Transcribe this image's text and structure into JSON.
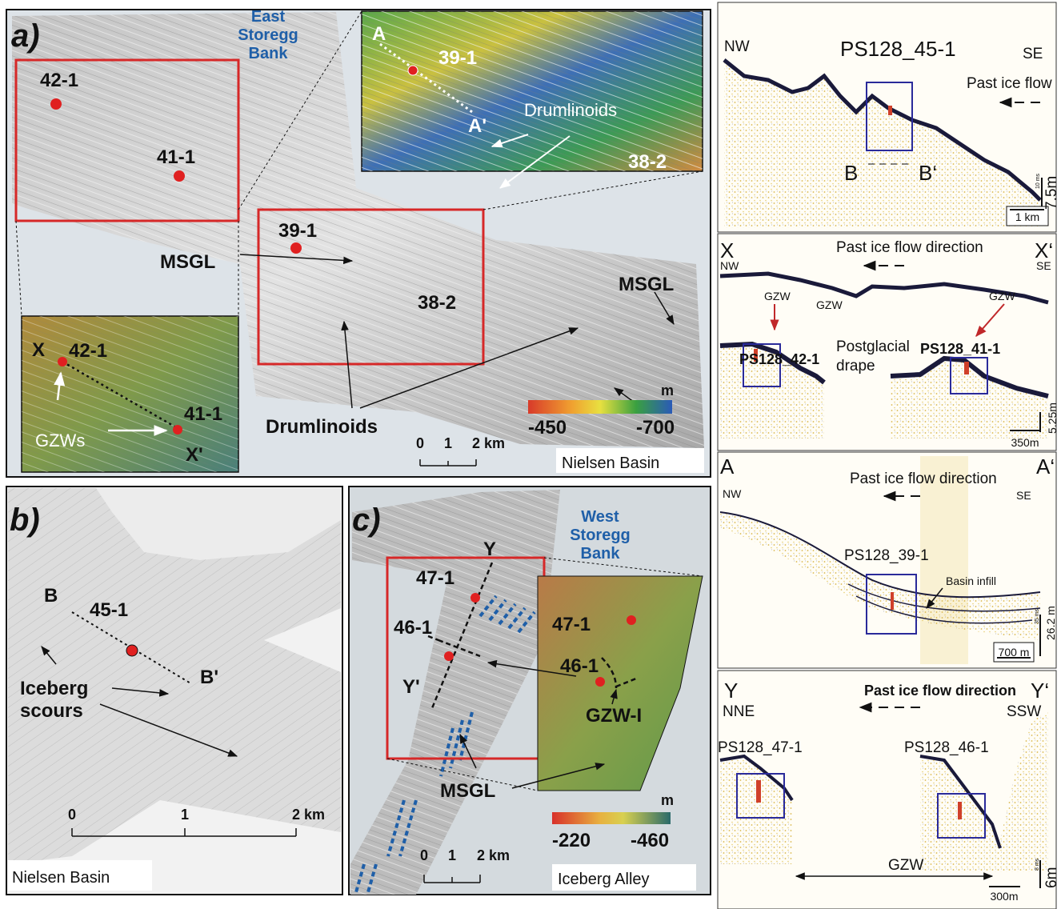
{
  "panel_a": {
    "label": "a)",
    "region": [
      "East",
      "Storegg",
      "Bank"
    ],
    "sites": [
      "42-1",
      "41-1",
      "39-1",
      "38-2"
    ],
    "msgl_labels": [
      "MSGL",
      "MSGL"
    ],
    "drumlinoids": "Drumlinoids",
    "inset_a": {
      "start": "A",
      "end": "A'",
      "site_1": "39-1",
      "site_2": "38-2",
      "feature": "Drumlinoids"
    },
    "inset_x": {
      "start": "X",
      "end": "X'",
      "site_1": "42-1",
      "site_2": "41-1",
      "feature": "GZWs"
    },
    "colorbar": {
      "unit": "m",
      "min": "-450",
      "max": "-700"
    },
    "scale": [
      "0",
      "1",
      "2 km"
    ],
    "location": "Nielsen Basin"
  },
  "panel_b": {
    "label": "b)",
    "start": "B",
    "end": "B'",
    "site": "45-1",
    "feature": [
      "Iceberg",
      "scours"
    ],
    "scale": [
      "0",
      "1",
      "2 km"
    ],
    "location": "Nielsen Basin"
  },
  "panel_c": {
    "label": "c)",
    "region": [
      "West",
      "Storegg",
      "Bank"
    ],
    "start": "Y",
    "end": "Y'",
    "sites": [
      "47-1",
      "46-1"
    ],
    "inset": {
      "site_1": "47-1",
      "site_2": "46-1",
      "feature": "GZW-I"
    },
    "msgl": "MSGL",
    "colorbar": {
      "unit": "m",
      "min": "-220",
      "max": "-460"
    },
    "scale": [
      "0",
      "1",
      "2 km"
    ],
    "location": "Iceberg Alley"
  },
  "profiles": [
    {
      "left": "NW",
      "title": "PS128_45-1",
      "right": "SE",
      "flow": "Past ice flow",
      "box_left": "B",
      "box_right": "B‘",
      "vscale": "7.5m",
      "vscale_ms": "10 ms",
      "hscale": "1 km"
    },
    {
      "start": "X",
      "end": "X‘",
      "left": "NW",
      "right": "SE",
      "flow": "Past ice flow direction",
      "features": [
        "GZW",
        "GZW",
        "GZW"
      ],
      "site_1": "PS128_42-1",
      "site_2": "PS128_41-1",
      "drape": [
        "Postglacial",
        "drape"
      ],
      "vscale": "5.25m",
      "hscale": "350m"
    },
    {
      "start": "A",
      "end": "A‘",
      "left": "NW",
      "right": "SE",
      "flow": "Past ice flow direction",
      "site": "PS128_39-1",
      "feature": "Basin infill",
      "vscale": "26.2 m",
      "vscale_ms": "35 ms",
      "hscale": "700 m"
    },
    {
      "start": "Y",
      "end": "Y‘",
      "left": "NNE",
      "right": "SSW",
      "flow": "Past ice flow direction",
      "site_1": "PS128_47-1",
      "site_2": "PS128_46-1",
      "feature": "GZW",
      "vscale": "6m",
      "vscale_ms": "8 ms",
      "hscale": "300m"
    }
  ]
}
